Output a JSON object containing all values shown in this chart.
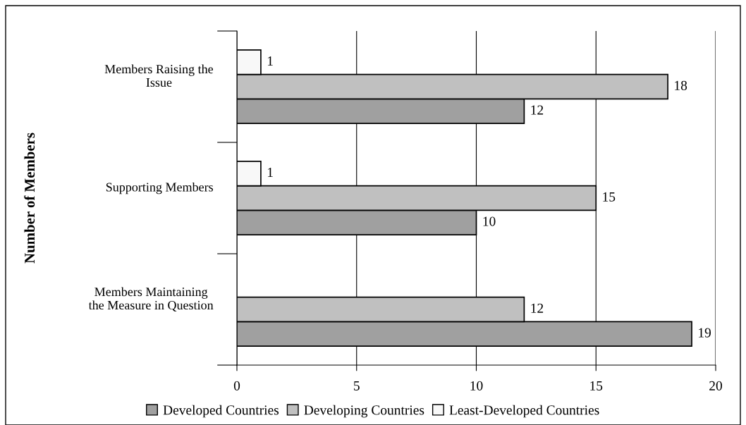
{
  "chart_data": {
    "type": "bar",
    "orientation": "horizontal",
    "ylabel": "Number of Members",
    "categories": [
      "Members Raising the\nIssue",
      "Supporting Members",
      "Members Maintaining\nthe Measure in Question"
    ],
    "series": [
      {
        "name": "Developed Countries",
        "color": "#a0a0a0",
        "values": [
          12,
          10,
          19
        ]
      },
      {
        "name": "Developing Countries",
        "color": "#c0c0c0",
        "values": [
          18,
          15,
          12
        ]
      },
      {
        "name": "Least-Developed Countries",
        "color": "#f8f8f8",
        "values": [
          1,
          1,
          null
        ]
      }
    ],
    "xlim": [
      0,
      20
    ],
    "xticks": [
      0,
      5,
      10,
      15,
      20
    ],
    "grid": "x",
    "legend": "bottom",
    "data_labels": true
  }
}
